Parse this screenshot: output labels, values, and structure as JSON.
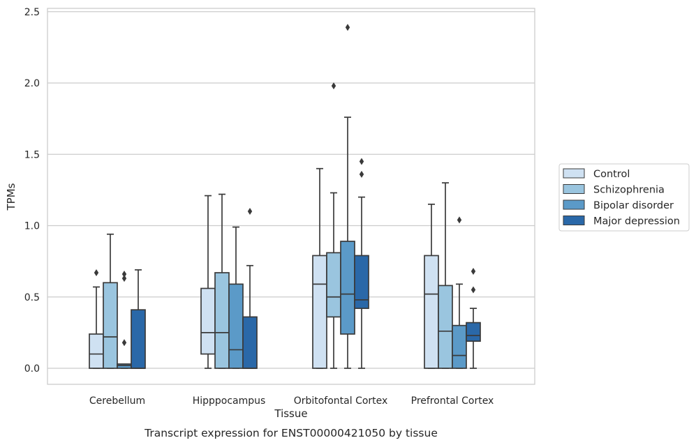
{
  "chart_data": {
    "type": "box",
    "title": "",
    "caption": "Transcript expression for ENST00000421050 by tissue",
    "xlabel": "Tissue",
    "ylabel": "TPMs",
    "ylim": [
      -0.12,
      2.52
    ],
    "yticks": [
      0.0,
      0.5,
      1.0,
      1.5,
      2.0,
      2.5
    ],
    "ytick_labels": [
      "0.0",
      "0.5",
      "1.0",
      "1.5",
      "2.0",
      "2.5"
    ],
    "grid": "horizontal",
    "legend_position": "right",
    "categories": [
      "Cerebellum",
      "Hipppocampus",
      "Orbitofontal Cortex",
      "Prefrontal Cortex"
    ],
    "series": [
      {
        "name": "Control",
        "color": "#cfe1f2",
        "boxes": [
          {
            "q1": 0.0,
            "median": 0.1,
            "q3": 0.24,
            "whisker_low": 0.0,
            "whisker_high": 0.57,
            "outliers": [
              0.67
            ]
          },
          {
            "q1": 0.1,
            "median": 0.25,
            "q3": 0.56,
            "whisker_low": 0.0,
            "whisker_high": 1.21,
            "outliers": []
          },
          {
            "q1": 0.0,
            "median": 0.59,
            "q3": 0.79,
            "whisker_low": 0.0,
            "whisker_high": 1.4,
            "outliers": []
          },
          {
            "q1": 0.0,
            "median": 0.52,
            "q3": 0.79,
            "whisker_low": 0.0,
            "whisker_high": 1.15,
            "outliers": []
          }
        ]
      },
      {
        "name": "Schizophrenia",
        "color": "#9ac5df",
        "boxes": [
          {
            "q1": 0.0,
            "median": 0.22,
            "q3": 0.6,
            "whisker_low": 0.0,
            "whisker_high": 0.94,
            "outliers": []
          },
          {
            "q1": 0.0,
            "median": 0.25,
            "q3": 0.67,
            "whisker_low": 0.0,
            "whisker_high": 1.22,
            "outliers": []
          },
          {
            "q1": 0.36,
            "median": 0.5,
            "q3": 0.81,
            "whisker_low": 0.0,
            "whisker_high": 1.23,
            "outliers": [
              1.98
            ]
          },
          {
            "q1": 0.0,
            "median": 0.26,
            "q3": 0.58,
            "whisker_low": 0.0,
            "whisker_high": 1.3,
            "outliers": []
          }
        ]
      },
      {
        "name": "Bipolar disorder",
        "color": "#5b9ac8",
        "boxes": [
          {
            "q1": 0.0,
            "median": 0.02,
            "q3": 0.03,
            "whisker_low": 0.0,
            "whisker_high": 0.03,
            "outliers": [
              0.18,
              0.63,
              0.66
            ]
          },
          {
            "q1": 0.0,
            "median": 0.13,
            "q3": 0.59,
            "whisker_low": 0.0,
            "whisker_high": 0.99,
            "outliers": []
          },
          {
            "q1": 0.24,
            "median": 0.52,
            "q3": 0.89,
            "whisker_low": 0.0,
            "whisker_high": 1.76,
            "outliers": [
              2.39
            ]
          },
          {
            "q1": 0.0,
            "median": 0.09,
            "q3": 0.3,
            "whisker_low": 0.0,
            "whisker_high": 0.59,
            "outliers": [
              1.04
            ]
          }
        ]
      },
      {
        "name": "Major depression",
        "color": "#2a68a8",
        "boxes": [
          {
            "q1": 0.0,
            "median": 0.0,
            "q3": 0.41,
            "whisker_low": 0.0,
            "whisker_high": 0.69,
            "outliers": []
          },
          {
            "q1": 0.0,
            "median": 0.0,
            "q3": 0.36,
            "whisker_low": 0.0,
            "whisker_high": 0.72,
            "outliers": [
              1.1
            ]
          },
          {
            "q1": 0.42,
            "median": 0.48,
            "q3": 0.79,
            "whisker_low": 0.0,
            "whisker_high": 1.2,
            "outliers": [
              1.36,
              1.45
            ]
          },
          {
            "q1": 0.19,
            "median": 0.23,
            "q3": 0.32,
            "whisker_low": 0.0,
            "whisker_high": 0.42,
            "outliers": [
              0.55,
              0.68
            ]
          }
        ]
      }
    ]
  }
}
